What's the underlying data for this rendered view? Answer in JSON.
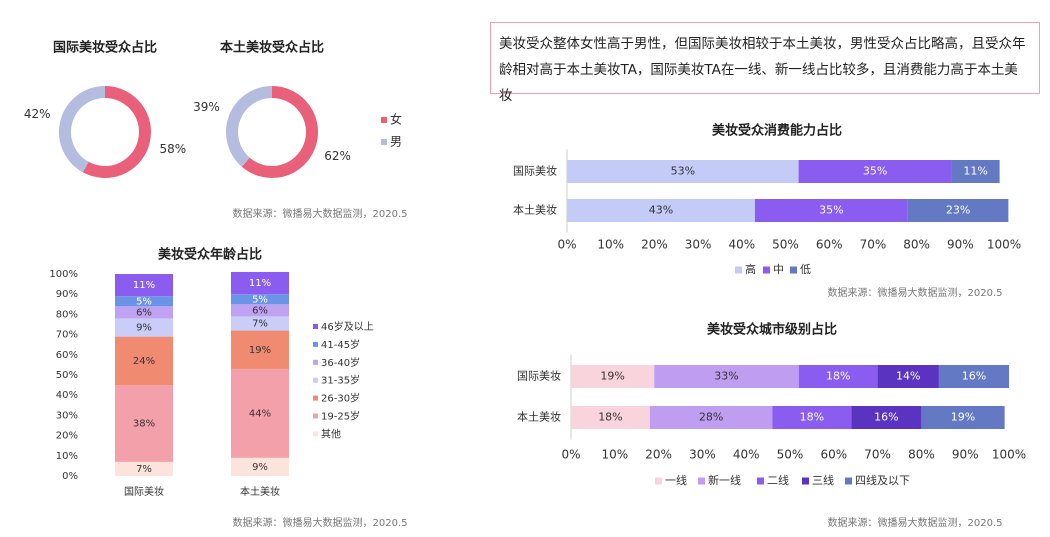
{
  "note": "美妆受众整体女性高于男性，但国际美妆相较于本土美妆，男性受众占比略高，且受众年龄相对高于本土美妆TA，国际美妆TA在一线、新一线占比较多，且消费能力高于本土美妆",
  "chart_data": [
    {
      "type": "donut",
      "title": "国际美妆受众占比",
      "categories": [
        "女",
        "男"
      ],
      "values": [
        58,
        42
      ],
      "value_labels": [
        "58%",
        "42%"
      ],
      "colors": [
        "#e8607a",
        "#b4bde0"
      ]
    },
    {
      "type": "donut",
      "title": "本土美妆受众占比",
      "categories": [
        "女",
        "男"
      ],
      "values": [
        62,
        39
      ],
      "value_labels": [
        "62%",
        "39%"
      ],
      "colors": [
        "#e8607a",
        "#b4bde0"
      ],
      "source": "数据来源：微播易大数据监测，2020.5"
    },
    {
      "type": "bar",
      "orientation": "vertical",
      "stacked": true,
      "title": "美妆受众年龄占比",
      "categories": [
        "国际美妆",
        "本土美妆"
      ],
      "series": [
        {
          "name": "其他",
          "color": "#fce4dc",
          "values": [
            7,
            9
          ],
          "value_labels": [
            "7%",
            "9%"
          ]
        },
        {
          "name": "19-25岁",
          "color": "#f4a0ab",
          "values": [
            38,
            44
          ],
          "value_labels": [
            "38%",
            "44%"
          ]
        },
        {
          "name": "26-30岁",
          "color": "#f08b72",
          "values": [
            24,
            19
          ],
          "value_labels": [
            "24%",
            "19%"
          ]
        },
        {
          "name": "31-35岁",
          "color": "#c9cdf7",
          "values": [
            9,
            7
          ],
          "value_labels": [
            "9%",
            "7%"
          ]
        },
        {
          "name": "36-40岁",
          "color": "#c0a2f2",
          "values": [
            6,
            6
          ],
          "value_labels": [
            "6%",
            "6%"
          ]
        },
        {
          "name": "41-45岁",
          "color": "#6b93e6",
          "values": [
            5,
            5
          ],
          "value_labels": [
            "5%",
            "5%"
          ]
        },
        {
          "name": "46岁及以上",
          "color": "#8a5cf0",
          "values": [
            11,
            11
          ],
          "value_labels": [
            "11%",
            "11%"
          ]
        }
      ],
      "ylim": [
        0,
        100
      ],
      "yticks": [
        {
          "value": 0,
          "label": "0%"
        },
        {
          "value": 10,
          "label": "10%"
        },
        {
          "value": 20,
          "label": "20%"
        },
        {
          "value": 30,
          "label": "30%"
        },
        {
          "value": 40,
          "label": "40%"
        },
        {
          "value": 50,
          "label": "50%"
        },
        {
          "value": 60,
          "label": "60%"
        },
        {
          "value": 70,
          "label": "70%"
        },
        {
          "value": 80,
          "label": "80%"
        },
        {
          "value": 90,
          "label": "90%"
        },
        {
          "value": 100,
          "label": "100%"
        }
      ],
      "source": "数据来源：微播易大数据监测，2020.5"
    },
    {
      "type": "bar",
      "orientation": "horizontal",
      "stacked": true,
      "title": "美妆受众消费能力占比",
      "categories": [
        "国际美妆",
        "本土美妆"
      ],
      "series": [
        {
          "name": "高",
          "color": "#c3cbf6",
          "values": [
            53,
            43
          ],
          "value_labels": [
            "53%",
            "43%"
          ]
        },
        {
          "name": "中",
          "color": "#8a5cf0",
          "values": [
            35,
            35
          ],
          "value_labels": [
            "35%",
            "35%"
          ]
        },
        {
          "name": "低",
          "color": "#6479c4",
          "values": [
            11,
            23
          ],
          "value_labels": [
            "11%",
            "23%"
          ]
        }
      ],
      "xlim": [
        0,
        100
      ],
      "xticks": [
        {
          "value": 0,
          "label": "0%"
        },
        {
          "value": 10,
          "label": "10%"
        },
        {
          "value": 20,
          "label": "20%"
        },
        {
          "value": 30,
          "label": "30%"
        },
        {
          "value": 40,
          "label": "40%"
        },
        {
          "value": 50,
          "label": "50%"
        },
        {
          "value": 60,
          "label": "60%"
        },
        {
          "value": 70,
          "label": "70%"
        },
        {
          "value": 80,
          "label": "80%"
        },
        {
          "value": 90,
          "label": "90%"
        },
        {
          "value": 100,
          "label": "100%"
        }
      ],
      "source": "数据来源：微播易大数据监测，2020.5"
    },
    {
      "type": "bar",
      "orientation": "horizontal",
      "stacked": true,
      "title": "美妆受众城市级别占比",
      "categories": [
        "国际美妆",
        "本土美妆"
      ],
      "series": [
        {
          "name": "一线",
          "color": "#fad4dc",
          "values": [
            19,
            18
          ],
          "value_labels": [
            "19%",
            "18%"
          ]
        },
        {
          "name": "新一线",
          "color": "#bf9ef2",
          "values": [
            33,
            28
          ],
          "value_labels": [
            "33%",
            "28%"
          ]
        },
        {
          "name": "二线",
          "color": "#8a5cf0",
          "values": [
            18,
            18
          ],
          "value_labels": [
            "18%",
            "18%"
          ]
        },
        {
          "name": "三线",
          "color": "#5a34c0",
          "values": [
            14,
            16
          ],
          "value_labels": [
            "14%",
            "16%"
          ]
        },
        {
          "name": "四线及以下",
          "color": "#6479c4",
          "values": [
            16,
            19
          ],
          "value_labels": [
            "16%",
            "19%"
          ]
        }
      ],
      "xlim": [
        0,
        100
      ],
      "xticks": [
        {
          "value": 0,
          "label": "0%"
        },
        {
          "value": 10,
          "label": "10%"
        },
        {
          "value": 20,
          "label": "20%"
        },
        {
          "value": 30,
          "label": "30%"
        },
        {
          "value": 40,
          "label": "40%"
        },
        {
          "value": 50,
          "label": "50%"
        },
        {
          "value": 60,
          "label": "60%"
        },
        {
          "value": 70,
          "label": "70%"
        },
        {
          "value": 80,
          "label": "80%"
        },
        {
          "value": 90,
          "label": "90%"
        },
        {
          "value": 100,
          "label": "100%"
        }
      ],
      "source": "数据来源：微播易大数据监测，2020.5"
    }
  ]
}
